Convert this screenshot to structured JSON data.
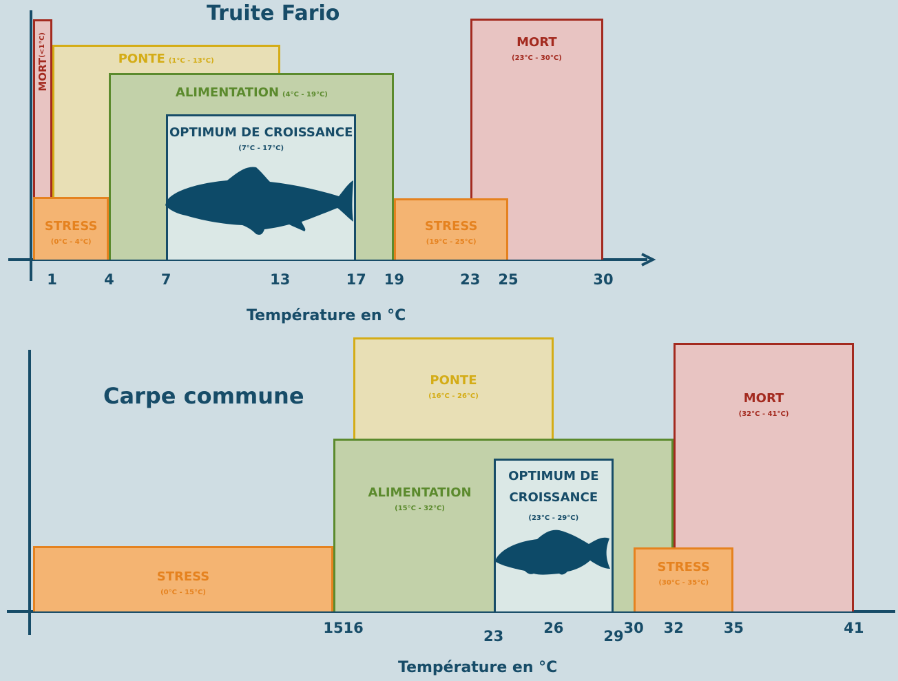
{
  "chart_data": [
    {
      "type": "range",
      "title": "Truite Fario",
      "x_label": "Température en °C",
      "xlim": [
        0,
        32.5
      ],
      "xticks": [
        1,
        4,
        7,
        13,
        17,
        19,
        23,
        25,
        30
      ],
      "ranges": [
        {
          "name": "MORT",
          "label": "(<1°C)",
          "start": 0,
          "end": 1,
          "color": "#a32a1f",
          "fill": "#e8c4c2"
        },
        {
          "name": "PONTE",
          "label": "(1°C - 13°C)",
          "start": 1,
          "end": 13,
          "color": "#d4ac16",
          "fill": "#e8dfb5"
        },
        {
          "name": "ALIMENTATION",
          "label": "(4°C - 19°C)",
          "start": 4,
          "end": 19,
          "color": "#5b8a2d",
          "fill": "#c2d1a9"
        },
        {
          "name": "OPTIMUM DE CROISSANCE",
          "label": "(7°C - 17°C)",
          "start": 7,
          "end": 17,
          "color": "#174c68",
          "fill": "#dbe8e6"
        },
        {
          "name": "STRESS",
          "label": "(0°C - 4°C)",
          "start": 0,
          "end": 4,
          "color": "#e5821f",
          "fill": "#f4b472"
        },
        {
          "name": "MORT",
          "label": "(23°C - 30°C)",
          "start": 23,
          "end": 30,
          "color": "#a32a1f",
          "fill": "#e8c4c2"
        },
        {
          "name": "STRESS",
          "label": "(19°C - 25°C)",
          "start": 19,
          "end": 25,
          "color": "#e5821f",
          "fill": "#f4b472"
        }
      ]
    },
    {
      "type": "range",
      "title": "Carpe commune",
      "x_label": "Température en °C",
      "xlim": [
        0,
        43
      ],
      "xticks": [
        15,
        16,
        23,
        26,
        29,
        30,
        32,
        35,
        41
      ],
      "ranges": [
        {
          "name": "STRESS",
          "label": "(0°C - 15°C)",
          "start": 0,
          "end": 15,
          "color": "#e5821f",
          "fill": "#f4b472"
        },
        {
          "name": "PONTE",
          "label": "(16°C - 26°C)",
          "start": 16,
          "end": 26,
          "color": "#d4ac16",
          "fill": "#e8dfb5"
        },
        {
          "name": "ALIMENTATION",
          "label": "(15°C - 32°C)",
          "start": 15,
          "end": 32,
          "color": "#5b8a2d",
          "fill": "#c2d1a9"
        },
        {
          "name": "OPTIMUM DE CROISSANCE",
          "label": "(23°C - 29°C)",
          "start": 23,
          "end": 29,
          "color": "#174c68",
          "fill": "#dbe8e6"
        },
        {
          "name": "MORT",
          "label": "(32°C - 41°C)",
          "start": 32,
          "end": 41,
          "color": "#a32a1f",
          "fill": "#e8c4c2"
        },
        {
          "name": "STRESS",
          "label": "(30°C - 35°C)",
          "start": 30,
          "end": 35,
          "color": "#e5821f",
          "fill": "#f4b472"
        }
      ]
    }
  ]
}
